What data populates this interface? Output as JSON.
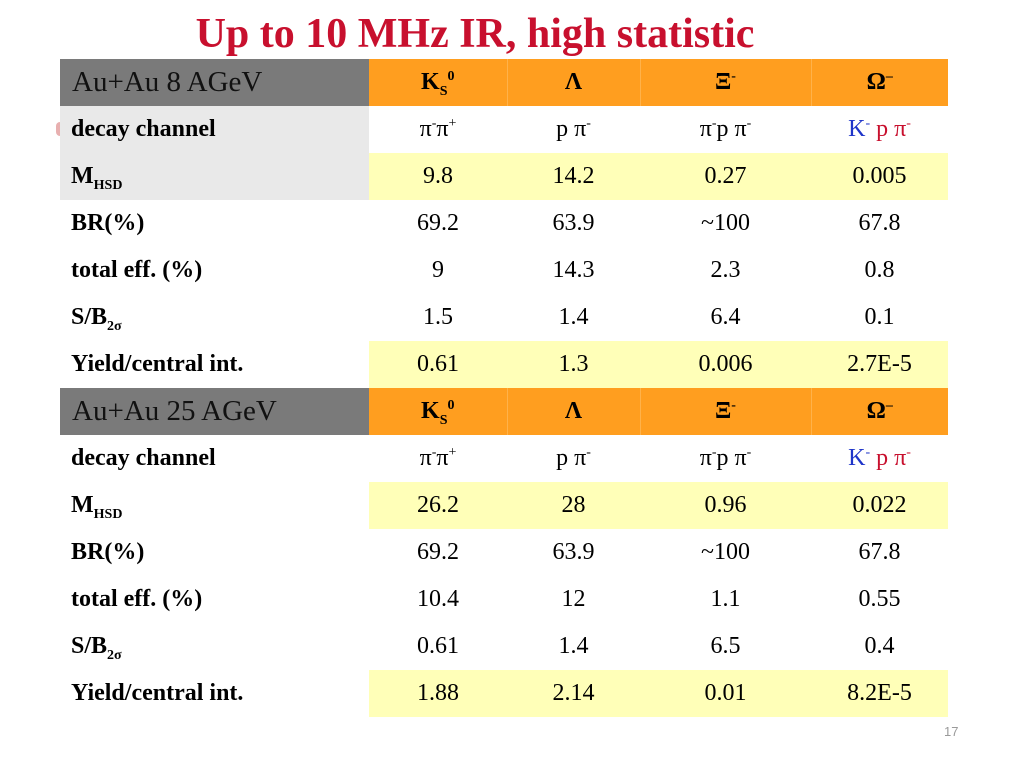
{
  "slide": {
    "title": "Up to 10 MHz IR, high statistic",
    "page_number": "17"
  },
  "sections": [
    {
      "system": "Au+Au 8 AGeV",
      "particles": [
        "K",
        "S",
        "0",
        "Λ",
        "Ξ",
        "-",
        "Ω",
        "–"
      ],
      "decay": {
        "label": "decay channel",
        "ks": [
          "π",
          "-",
          "π",
          "+"
        ],
        "lambda": [
          "p π",
          "-"
        ],
        "xi": [
          "π",
          "-",
          "p π",
          "-"
        ],
        "omega": [
          "K",
          "-",
          " p π",
          "-"
        ]
      },
      "mhsd": {
        "label_main": "M",
        "label_sub": "HSD",
        "values": [
          "9.8",
          "14.2",
          "0.27",
          "0.005"
        ]
      },
      "br": {
        "label": "BR(%)",
        "values": [
          "69.2",
          "63.9",
          "~100",
          "67.8"
        ]
      },
      "eff": {
        "label": "total eff. (%)",
        "values": [
          "9",
          "14.3",
          "2.3",
          "0.8"
        ]
      },
      "sb": {
        "label_main": "S/B",
        "label_sub": "2σ",
        "values": [
          "1.5",
          "1.4",
          "6.4",
          "0.1"
        ]
      },
      "yield": {
        "label": "Yield/central int.",
        "values": [
          "0.61",
          "1.3",
          "0.006",
          "2.7E-5"
        ]
      }
    },
    {
      "system": "Au+Au 25 AGeV",
      "particles": [
        "K",
        "S",
        "0",
        "Λ",
        "Ξ",
        "-",
        "Ω",
        "–"
      ],
      "decay": {
        "label": "decay channel",
        "ks": [
          "π",
          "-",
          "π",
          "+"
        ],
        "lambda": [
          "p π",
          "-"
        ],
        "xi": [
          "π",
          "-",
          "p π",
          "-"
        ],
        "omega": [
          "K",
          "-",
          " p π",
          "-"
        ]
      },
      "mhsd": {
        "label_main": "M",
        "label_sub": "HSD",
        "values": [
          "26.2",
          "28",
          "0.96",
          "0.022"
        ]
      },
      "br": {
        "label": "BR(%)",
        "values": [
          "69.2",
          "63.9",
          "~100",
          "67.8"
        ]
      },
      "eff": {
        "label": "total eff. (%)",
        "values": [
          "10.4",
          "12",
          "1.1",
          "0.55"
        ]
      },
      "sb": {
        "label_main": "S/B",
        "label_sub": "2σ",
        "values": [
          "0.61",
          "1.4",
          "6.5",
          "0.4"
        ]
      },
      "yield": {
        "label": "Yield/central int.",
        "values": [
          "1.88",
          "2.14",
          "0.01",
          "8.2E-5"
        ]
      }
    }
  ],
  "colors": {
    "title": "#c8102e",
    "header_orange": "#ff9e1f",
    "header_grey": "#7a7a7a",
    "highlight_yellow": "#ffffb8",
    "label_grey": "#e9e9e9",
    "decay_red": "#c8102e",
    "decay_blue": "#1f35c9"
  }
}
